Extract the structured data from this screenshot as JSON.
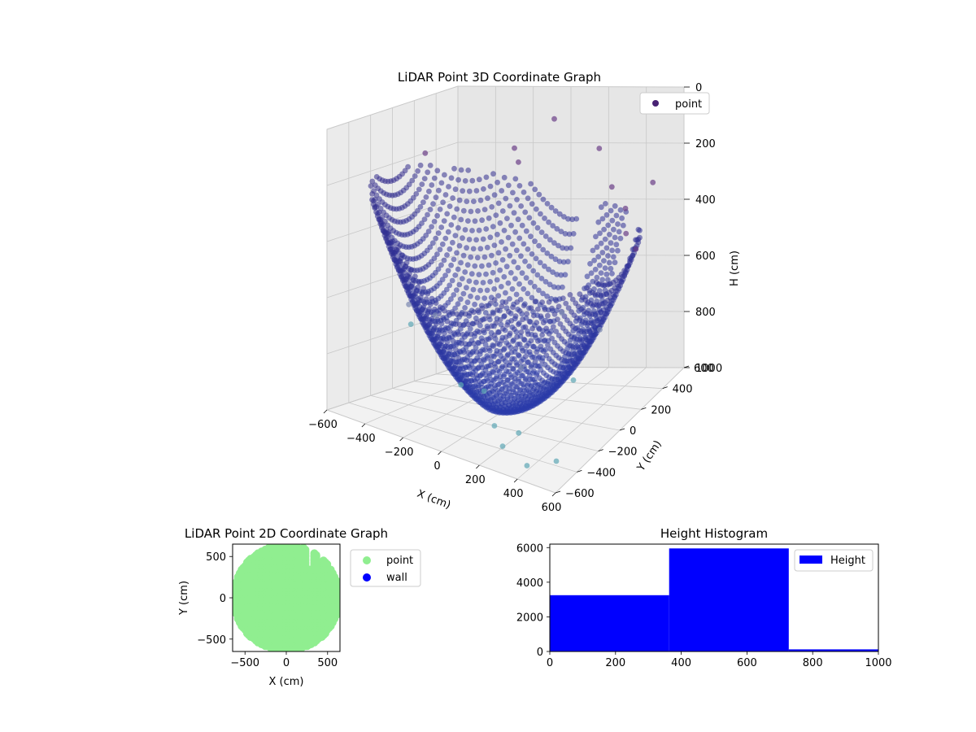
{
  "chart_data": [
    {
      "type": "scatter",
      "title": "LiDAR Point 3D Coordinate Graph",
      "xlabel": "X (cm)",
      "ylabel": "Y (cm)",
      "zlabel": "H (cm)",
      "xlim": [
        -600,
        600
      ],
      "ylim": [
        -600,
        600
      ],
      "zlim": [
        0,
        1000
      ],
      "z_inverted": true,
      "x_ticks": [
        "−600",
        "−400",
        "−200",
        "0",
        "200",
        "400",
        "600"
      ],
      "y_ticks": [
        "−600",
        "−400",
        "−200",
        "0",
        "200",
        "400",
        "600"
      ],
      "z_ticks": [
        "0",
        "200",
        "400",
        "600",
        "800",
        "1000"
      ],
      "grid": true,
      "legend": {
        "position": "top-right",
        "entries": [
          "point"
        ]
      },
      "series": [
        {
          "name": "point",
          "color": "#482173"
        }
      ],
      "sample_points": [
        [
          -600,
          300,
          200
        ],
        [
          -600,
          150,
          720
        ],
        [
          -560,
          100,
          780
        ],
        [
          -420,
          80,
          730
        ],
        [
          -300,
          600,
          220
        ],
        [
          -250,
          550,
          260
        ],
        [
          -100,
          620,
          120
        ],
        [
          150,
          600,
          220
        ],
        [
          320,
          420,
          300
        ],
        [
          460,
          300,
          330
        ],
        [
          520,
          200,
          380
        ],
        [
          560,
          380,
          260
        ],
        [
          600,
          150,
          410
        ],
        [
          380,
          -150,
          560
        ],
        [
          250,
          -300,
          730
        ],
        [
          100,
          -380,
          820
        ],
        [
          -50,
          -330,
          840
        ],
        [
          350,
          -500,
          880
        ],
        [
          450,
          -600,
          940
        ],
        [
          520,
          -450,
          960
        ],
        [
          480,
          -220,
          760
        ],
        [
          540,
          -80,
          620
        ],
        [
          200,
          -460,
          900
        ],
        [
          300,
          -560,
          920
        ]
      ]
    },
    {
      "type": "scatter",
      "title": "LiDAR Point 2D Coordinate Graph",
      "xlabel": "X (cm)",
      "ylabel": "Y (cm)",
      "xlim": [
        -650,
        650
      ],
      "ylim": [
        -650,
        650
      ],
      "x_ticks": [
        "−500",
        "0",
        "500"
      ],
      "y_ticks": [
        "−500",
        "0",
        "500"
      ],
      "legend": {
        "position": "outside-right",
        "entries": [
          "point",
          "wall"
        ]
      },
      "series": [
        {
          "name": "point",
          "color": "#90ee90"
        },
        {
          "name": "wall",
          "color": "#0000ff"
        }
      ]
    },
    {
      "type": "bar",
      "title": "Height Histogram",
      "xlim": [
        0,
        1000
      ],
      "ylim": [
        0,
        6200
      ],
      "x_ticks": [
        "0",
        "200",
        "400",
        "600",
        "800",
        "1000"
      ],
      "y_ticks": [
        "0",
        "2000",
        "4000",
        "6000"
      ],
      "legend": {
        "position": "top-right",
        "entries": [
          "Height"
        ]
      },
      "series": [
        {
          "name": "Height",
          "color": "#0000ff"
        }
      ],
      "bins": [
        {
          "start": 0,
          "end": 363,
          "count": 3250
        },
        {
          "start": 363,
          "end": 727,
          "count": 5950
        },
        {
          "start": 727,
          "end": 1000,
          "count": 120
        }
      ]
    }
  ]
}
